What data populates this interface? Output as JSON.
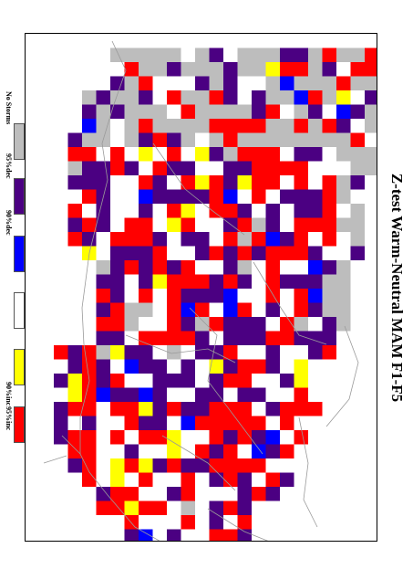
{
  "title": "Z-test Warm-Neutral MAM F1-F5",
  "legend": [
    {
      "label": "No Storms",
      "color": "#bdbdbd"
    },
    {
      "label": "95%dec",
      "color": "#4b0082"
    },
    {
      "label": "90%dec",
      "color": "#0000ff"
    },
    {
      "label": "",
      "color": "#ffffff"
    },
    {
      "label": "90%inc",
      "color": "#ffff00"
    },
    {
      "label": "95%inc",
      "color": "#ff0000"
    }
  ],
  "category_colors": {
    "no_storms": "#bdbdbd",
    "dec95": "#4b0082",
    "dec90": "#0000ff",
    "not_significant": "#ffffff",
    "inc90": "#ffff00",
    "inc95": "#ff0000"
  }
}
